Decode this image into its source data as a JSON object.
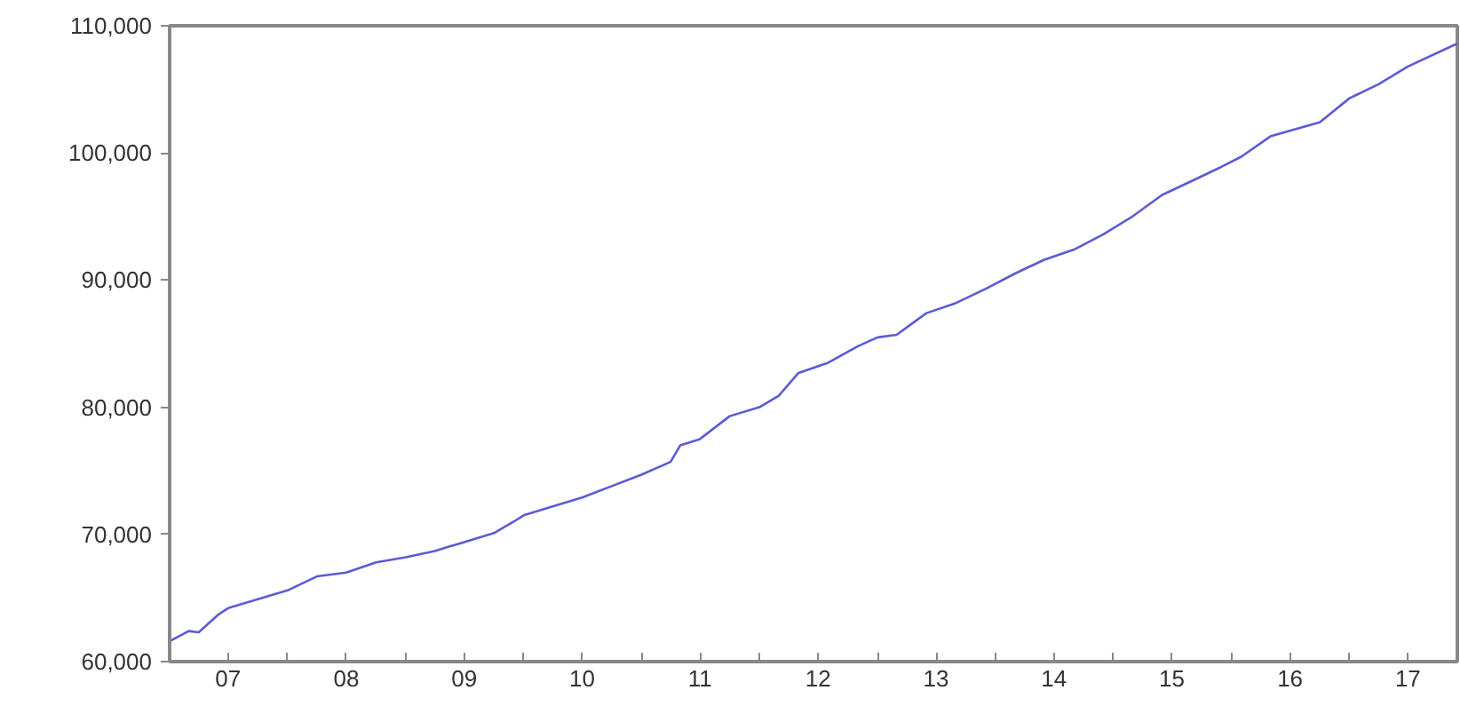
{
  "chart_data": {
    "type": "line",
    "x": [
      "2007-01",
      "2007-03",
      "2007-04",
      "2007-06",
      "2007-07",
      "2007-10",
      "2008-01",
      "2008-04",
      "2008-07",
      "2008-10",
      "2009-01",
      "2009-04",
      "2009-07",
      "2009-10",
      "2009-12",
      "2010-01",
      "2010-04",
      "2010-07",
      "2010-10",
      "2011-01",
      "2011-04",
      "2011-05",
      "2011-07",
      "2011-10",
      "2012-01",
      "2012-03",
      "2012-05",
      "2012-08",
      "2012-11",
      "2013-01",
      "2013-03",
      "2013-06",
      "2013-09",
      "2013-12",
      "2014-03",
      "2014-06",
      "2014-09",
      "2014-12",
      "2015-03",
      "2015-06",
      "2015-09",
      "2015-12",
      "2016-02",
      "2016-05",
      "2016-09",
      "2016-10",
      "2017-01",
      "2017-04",
      "2017-07",
      "2017-12"
    ],
    "series": [
      {
        "color": "#5b5bd6",
        "values": [
          61600,
          62400,
          62300,
          63700,
          64200,
          64900,
          65600,
          66700,
          67000,
          67800,
          68200,
          68700,
          69400,
          70100,
          71000,
          71500,
          72200,
          72900,
          73800,
          74700,
          75700,
          77000,
          77500,
          79300,
          80000,
          80900,
          82700,
          83500,
          84800,
          85500,
          85700,
          87400,
          88200,
          89300,
          90500,
          91600,
          92400,
          93600,
          95000,
          96700,
          97800,
          98900,
          99700,
          101300,
          102200,
          102400,
          104300,
          105400,
          106800,
          108600
        ]
      }
    ],
    "xlim": [
      "2007-01",
      "2017-12"
    ],
    "xticks": [
      {
        "value": "2007-07",
        "label": "07"
      },
      {
        "value": "2008-01",
        "label": null
      },
      {
        "value": "2008-07",
        "label": "08"
      },
      {
        "value": "2009-01",
        "label": null
      },
      {
        "value": "2009-07",
        "label": "09"
      },
      {
        "value": "2010-01",
        "label": null
      },
      {
        "value": "2010-07",
        "label": "10"
      },
      {
        "value": "2011-01",
        "label": null
      },
      {
        "value": "2011-07",
        "label": "11"
      },
      {
        "value": "2012-01",
        "label": null
      },
      {
        "value": "2012-07",
        "label": "12"
      },
      {
        "value": "2013-01",
        "label": null
      },
      {
        "value": "2013-07",
        "label": "13"
      },
      {
        "value": "2014-01",
        "label": null
      },
      {
        "value": "2014-07",
        "label": "14"
      },
      {
        "value": "2015-01",
        "label": null
      },
      {
        "value": "2015-07",
        "label": "15"
      },
      {
        "value": "2016-01",
        "label": null
      },
      {
        "value": "2016-07",
        "label": "16"
      },
      {
        "value": "2017-01",
        "label": null
      },
      {
        "value": "2017-07",
        "label": "17"
      }
    ],
    "ylim": [
      60000,
      110000
    ],
    "yticks": [
      {
        "value": 60000,
        "label": "60,000"
      },
      {
        "value": 70000,
        "label": "70,000"
      },
      {
        "value": 80000,
        "label": "80,000"
      },
      {
        "value": 90000,
        "label": "90,000"
      },
      {
        "value": 100000,
        "label": "100,000"
      },
      {
        "value": 110000,
        "label": "110,000"
      }
    ],
    "grid": false,
    "marker": "none",
    "line_style": "solid"
  }
}
